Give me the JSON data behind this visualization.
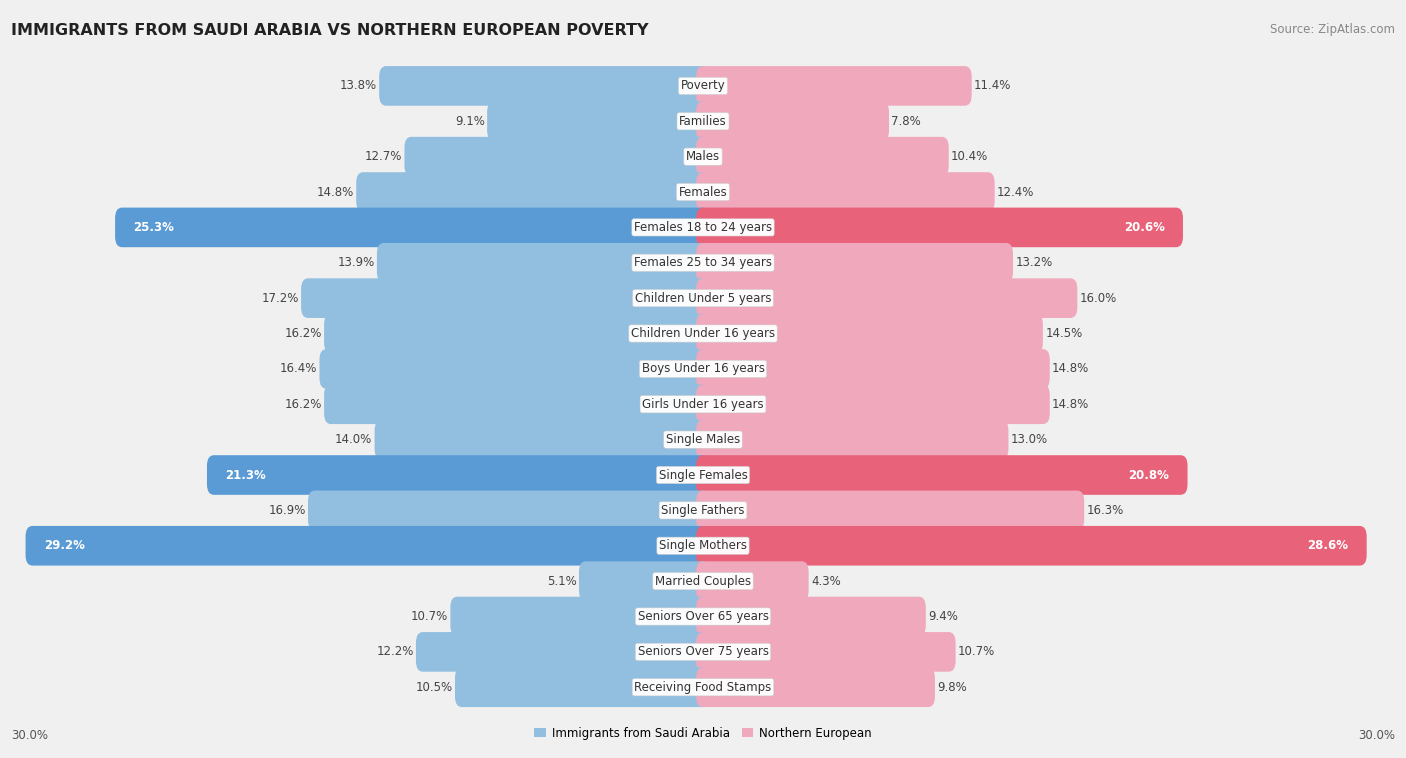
{
  "title": "IMMIGRANTS FROM SAUDI ARABIA VS NORTHERN EUROPEAN POVERTY",
  "source": "Source: ZipAtlas.com",
  "categories": [
    "Poverty",
    "Families",
    "Males",
    "Females",
    "Females 18 to 24 years",
    "Females 25 to 34 years",
    "Children Under 5 years",
    "Children Under 16 years",
    "Boys Under 16 years",
    "Girls Under 16 years",
    "Single Males",
    "Single Females",
    "Single Fathers",
    "Single Mothers",
    "Married Couples",
    "Seniors Over 65 years",
    "Seniors Over 75 years",
    "Receiving Food Stamps"
  ],
  "left_values": [
    13.8,
    9.1,
    12.7,
    14.8,
    25.3,
    13.9,
    17.2,
    16.2,
    16.4,
    16.2,
    14.0,
    21.3,
    16.9,
    29.2,
    5.1,
    10.7,
    12.2,
    10.5
  ],
  "right_values": [
    11.4,
    7.8,
    10.4,
    12.4,
    20.6,
    13.2,
    16.0,
    14.5,
    14.8,
    14.8,
    13.0,
    20.8,
    16.3,
    28.6,
    4.3,
    9.4,
    10.7,
    9.8
  ],
  "left_color_normal": "#92bfdf",
  "right_color_normal": "#f0a8bc",
  "left_color_highlight": "#5b9bd5",
  "right_color_highlight": "#e8637a",
  "highlight_rows": [
    4,
    11,
    13
  ],
  "left_label": "Immigrants from Saudi Arabia",
  "right_label": "Northern European",
  "x_max": 30.0,
  "fig_bg": "#f0f0f0",
  "row_bg_even": "#ffffff",
  "row_bg_odd": "#e8e8e8",
  "title_fontsize": 11.5,
  "cat_fontsize": 8.5,
  "val_fontsize": 8.5,
  "source_fontsize": 8.5
}
